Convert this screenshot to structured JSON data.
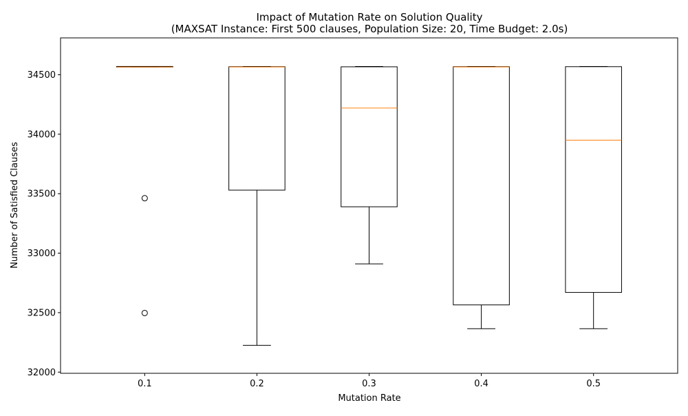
{
  "chart_data": {
    "type": "box",
    "title": "Impact of Mutation Rate on Solution Quality",
    "subtitle": "(MAXSAT Instance: First 500 clauses, Population Size: 20, Time Budget: 2.0s)",
    "xlabel": "Mutation Rate",
    "ylabel": "Number of Satisfied Clauses",
    "ylim": [
      31990,
      34810
    ],
    "yticks": [
      32000,
      32500,
      33000,
      33500,
      34000,
      34500
    ],
    "categories": [
      "0.1",
      "0.2",
      "0.3",
      "0.4",
      "0.5"
    ],
    "boxes": [
      {
        "category": "0.1",
        "whisker_low": 34565,
        "q1": 34565,
        "median": 34565,
        "q3": 34570,
        "whisker_high": 34570,
        "outliers": [
          33462,
          32497
        ]
      },
      {
        "category": "0.2",
        "whisker_low": 32225,
        "q1": 33530,
        "median": 34565,
        "q3": 34568,
        "whisker_high": 34570,
        "outliers": []
      },
      {
        "category": "0.3",
        "whisker_low": 32910,
        "q1": 33390,
        "median": 34220,
        "q3": 34567,
        "whisker_high": 34570,
        "outliers": []
      },
      {
        "category": "0.4",
        "whisker_low": 32365,
        "q1": 32565,
        "median": 34565,
        "q3": 34568,
        "whisker_high": 34570,
        "outliers": []
      },
      {
        "category": "0.5",
        "whisker_low": 32365,
        "q1": 32670,
        "median": 33950,
        "q3": 34568,
        "whisker_high": 34570,
        "outliers": []
      }
    ],
    "grid": false,
    "legend": "none",
    "colors": {
      "box": "#000000",
      "median": "#ff7f0e",
      "outlier": "#000000"
    }
  }
}
